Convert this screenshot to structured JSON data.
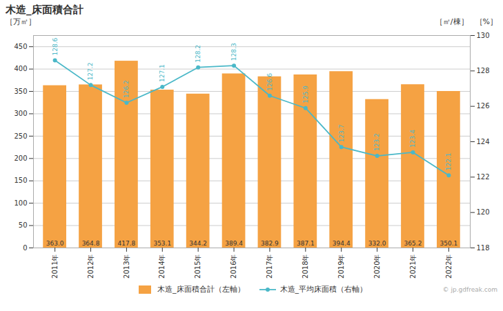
{
  "chart_data": {
    "type": "bar",
    "title": "木造_床面積合計",
    "categories": [
      "2011年",
      "2012年",
      "2013年",
      "2014年",
      "2015年",
      "2016年",
      "2017年",
      "2018年",
      "2019年",
      "2020年",
      "2021年",
      "2022年"
    ],
    "series": [
      {
        "name": "木造_床面積合計（左軸）",
        "type": "bar",
        "color": "#f5a243",
        "values": [
          363.0,
          364.8,
          417.8,
          353.1,
          344.2,
          389.4,
          382.9,
          387.1,
          394.4,
          332.0,
          365.2,
          350.1
        ],
        "value_labels": [
          "363.0",
          "364.8",
          "417.8",
          "353.1",
          "344.2",
          "389.4",
          "382.9",
          "387.1",
          "394.4",
          "332.0",
          "365.2",
          "350.1"
        ]
      },
      {
        "name": "木造_平均床面積（右軸）",
        "type": "line",
        "color": "#4ab8c8",
        "marker": "circle",
        "axis": "y2",
        "values": [
          128.6,
          127.2,
          126.2,
          127.1,
          128.2,
          128.3,
          126.6,
          125.9,
          123.7,
          123.2,
          123.4,
          122.1
        ]
      }
    ],
    "ylabel": "［万㎡］",
    "y2label": "［㎡/棟］",
    "annotations": [
      "［%］",
      "© jp.gdfreak.com"
    ],
    "ylim": [
      0,
      475
    ],
    "yticks": [
      0,
      50,
      100,
      150,
      200,
      250,
      300,
      350,
      400,
      450
    ],
    "y2lim": [
      118,
      130
    ],
    "y2ticks": [
      118,
      120,
      122,
      124,
      126,
      128,
      130
    ],
    "grid": true,
    "data_labels": true,
    "legend": "bottom"
  }
}
